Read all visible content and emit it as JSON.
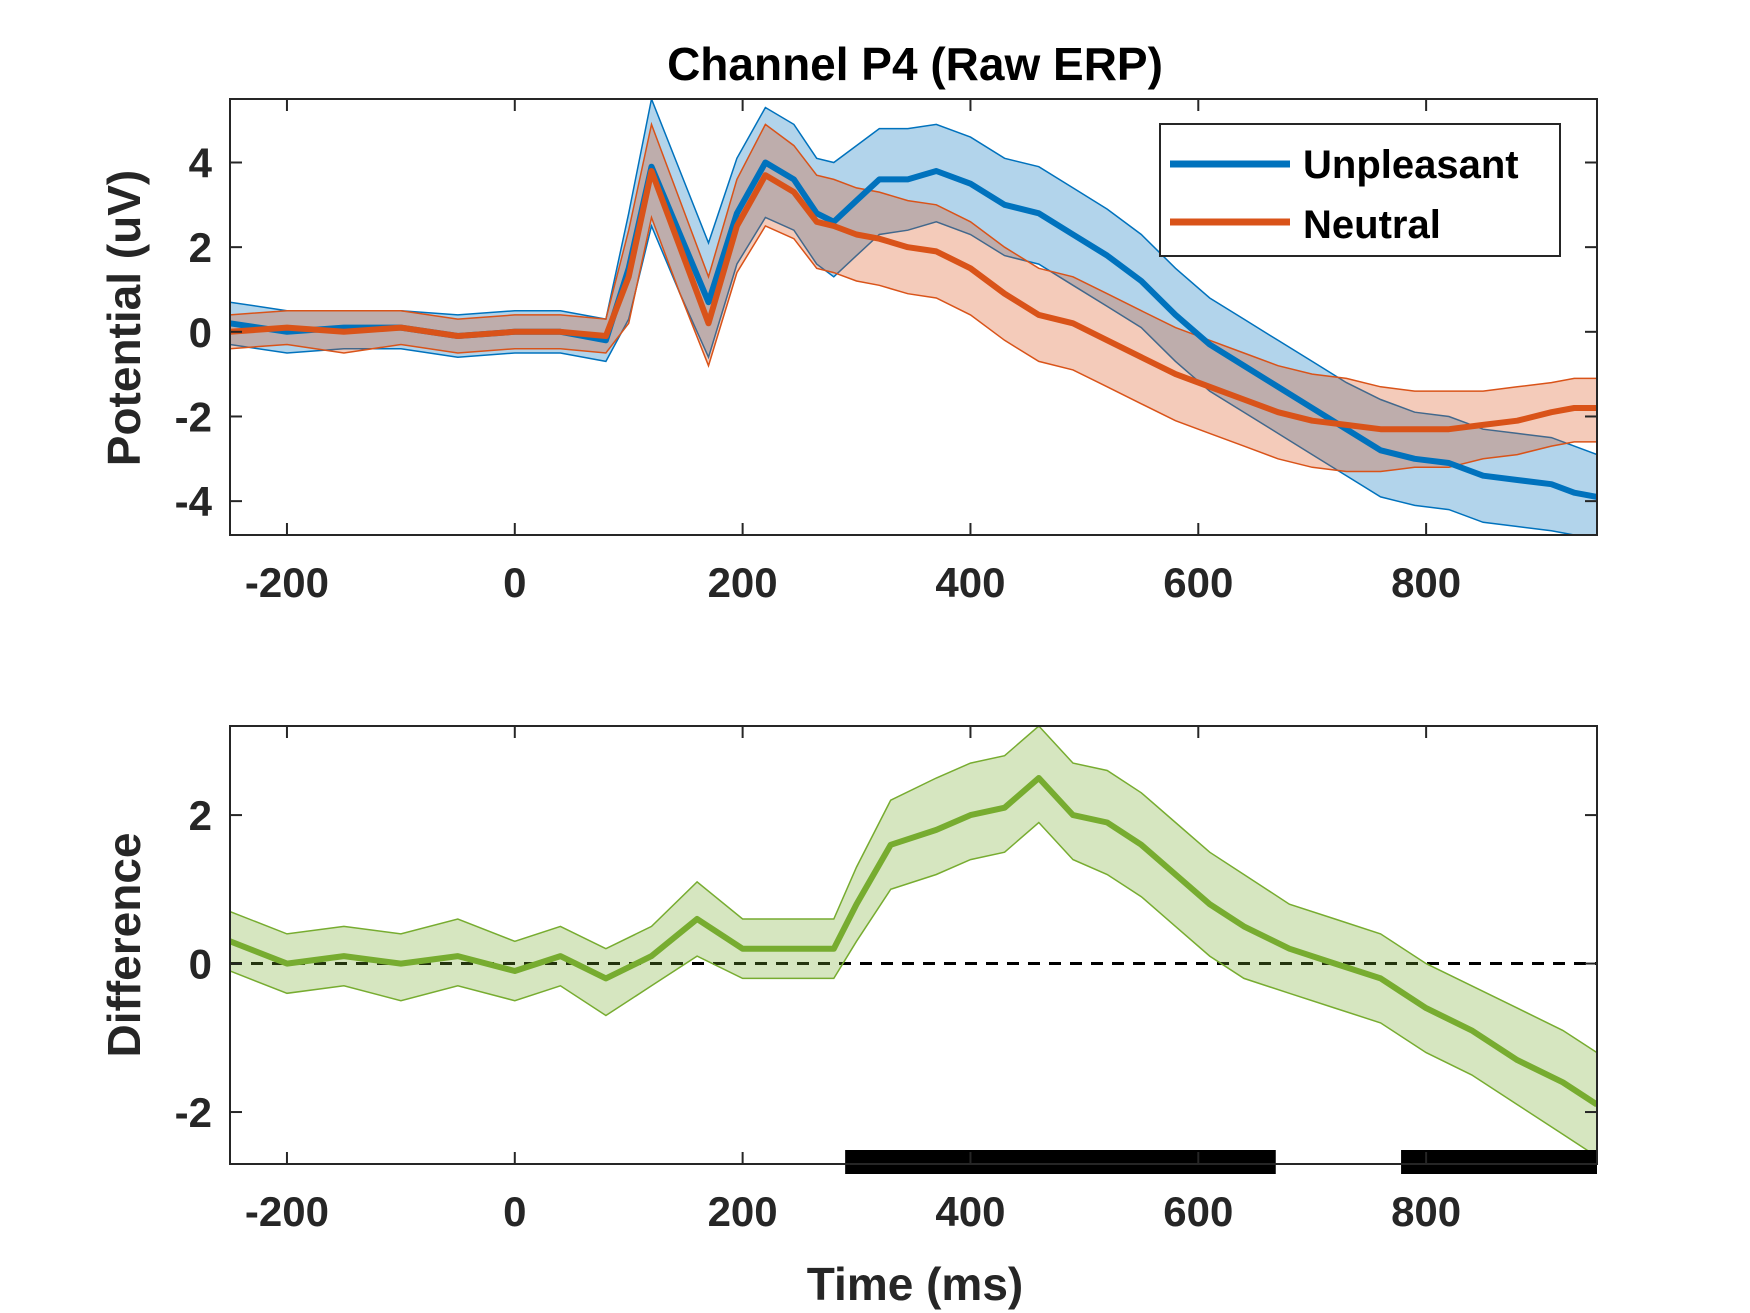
{
  "chart_data": [
    {
      "type": "line",
      "title": "Channel P4 (Raw ERP)",
      "xlabel": "",
      "ylabel": "Potential (uV)",
      "xlim": [
        -250,
        950
      ],
      "ylim": [
        -4.8,
        5.5
      ],
      "xticks": [
        -200,
        0,
        200,
        400,
        600,
        800
      ],
      "yticks": [
        -4,
        -2,
        0,
        2,
        4
      ],
      "legend": "top-right",
      "grid": false,
      "series": [
        {
          "name": "Unpleasant",
          "color": "#0072BD",
          "x": [
            -250,
            -200,
            -150,
            -100,
            -50,
            0,
            40,
            80,
            100,
            120,
            145,
            170,
            195,
            220,
            245,
            265,
            280,
            300,
            320,
            345,
            370,
            400,
            430,
            460,
            490,
            520,
            550,
            580,
            610,
            640,
            670,
            700,
            730,
            760,
            790,
            820,
            850,
            880,
            910,
            930,
            950
          ],
          "y": [
            0.2,
            0.0,
            0.1,
            0.1,
            -0.1,
            0.0,
            0.0,
            -0.2,
            1.5,
            3.9,
            2.3,
            0.7,
            2.8,
            4.0,
            3.6,
            2.8,
            2.6,
            3.1,
            3.6,
            3.6,
            3.8,
            3.5,
            3.0,
            2.8,
            2.3,
            1.8,
            1.2,
            0.4,
            -0.3,
            -0.8,
            -1.3,
            -1.8,
            -2.3,
            -2.8,
            -3.0,
            -3.1,
            -3.4,
            -3.5,
            -3.6,
            -3.8,
            -3.9
          ],
          "upper": [
            0.7,
            0.5,
            0.5,
            0.5,
            0.4,
            0.5,
            0.5,
            0.3,
            2.8,
            5.5,
            3.8,
            2.1,
            4.1,
            5.3,
            4.9,
            4.1,
            4.0,
            4.4,
            4.8,
            4.8,
            4.9,
            4.6,
            4.1,
            3.9,
            3.4,
            2.9,
            2.3,
            1.5,
            0.8,
            0.3,
            -0.2,
            -0.7,
            -1.2,
            -1.6,
            -1.9,
            -2.0,
            -2.3,
            -2.4,
            -2.5,
            -2.7,
            -2.9
          ],
          "lower": [
            -0.3,
            -0.5,
            -0.4,
            -0.4,
            -0.6,
            -0.5,
            -0.5,
            -0.7,
            0.3,
            2.5,
            0.9,
            -0.6,
            1.6,
            2.7,
            2.4,
            1.6,
            1.3,
            1.8,
            2.3,
            2.4,
            2.6,
            2.3,
            1.8,
            1.6,
            1.1,
            0.6,
            0.1,
            -0.7,
            -1.4,
            -1.9,
            -2.4,
            -2.9,
            -3.4,
            -3.9,
            -4.1,
            -4.2,
            -4.5,
            -4.6,
            -4.7,
            -4.8,
            -4.8
          ]
        },
        {
          "name": "Neutral",
          "color": "#D95319",
          "x": [
            -250,
            -200,
            -150,
            -100,
            -50,
            0,
            40,
            80,
            100,
            120,
            145,
            170,
            195,
            220,
            245,
            265,
            280,
            300,
            320,
            345,
            370,
            400,
            430,
            460,
            490,
            520,
            550,
            580,
            610,
            640,
            670,
            700,
            730,
            760,
            790,
            820,
            850,
            880,
            910,
            930,
            950
          ],
          "y": [
            0.0,
            0.1,
            0.0,
            0.1,
            -0.1,
            0.0,
            0.0,
            -0.1,
            1.3,
            3.8,
            2.0,
            0.2,
            2.5,
            3.7,
            3.3,
            2.6,
            2.5,
            2.3,
            2.2,
            2.0,
            1.9,
            1.5,
            0.9,
            0.4,
            0.2,
            -0.2,
            -0.6,
            -1.0,
            -1.3,
            -1.6,
            -1.9,
            -2.1,
            -2.2,
            -2.3,
            -2.3,
            -2.3,
            -2.2,
            -2.1,
            -1.9,
            -1.8,
            -1.8
          ],
          "upper": [
            0.4,
            0.5,
            0.5,
            0.5,
            0.3,
            0.4,
            0.4,
            0.3,
            2.4,
            4.9,
            3.1,
            1.3,
            3.6,
            4.9,
            4.4,
            3.7,
            3.6,
            3.4,
            3.3,
            3.1,
            3.0,
            2.6,
            2.0,
            1.5,
            1.3,
            0.9,
            0.5,
            0.1,
            -0.2,
            -0.5,
            -0.8,
            -1.0,
            -1.1,
            -1.3,
            -1.4,
            -1.4,
            -1.4,
            -1.3,
            -1.2,
            -1.1,
            -1.1
          ],
          "lower": [
            -0.4,
            -0.3,
            -0.5,
            -0.3,
            -0.5,
            -0.4,
            -0.4,
            -0.5,
            0.2,
            2.7,
            0.9,
            -0.8,
            1.4,
            2.5,
            2.2,
            1.5,
            1.4,
            1.2,
            1.1,
            0.9,
            0.8,
            0.4,
            -0.2,
            -0.7,
            -0.9,
            -1.3,
            -1.7,
            -2.1,
            -2.4,
            -2.7,
            -3.0,
            -3.2,
            -3.3,
            -3.3,
            -3.2,
            -3.2,
            -3.0,
            -2.9,
            -2.7,
            -2.6,
            -2.6
          ]
        }
      ]
    },
    {
      "type": "line",
      "title": "",
      "xlabel": "Time (ms)",
      "ylabel": "Difference",
      "xlim": [
        -250,
        950
      ],
      "ylim": [
        -2.7,
        3.2
      ],
      "xticks": [
        -200,
        0,
        200,
        400,
        600,
        800
      ],
      "yticks": [
        -2,
        0,
        2
      ],
      "grid": false,
      "zero_line": {
        "y": 0,
        "style": "dashed",
        "color": "#000000"
      },
      "series": [
        {
          "name": "",
          "color": "#77AC30",
          "x": [
            -250,
            -200,
            -150,
            -100,
            -50,
            0,
            40,
            80,
            120,
            160,
            200,
            240,
            280,
            300,
            330,
            370,
            400,
            430,
            460,
            490,
            520,
            550,
            580,
            610,
            640,
            680,
            720,
            760,
            800,
            840,
            880,
            920,
            950
          ],
          "y": [
            0.3,
            0.0,
            0.1,
            0.0,
            0.1,
            -0.1,
            0.1,
            -0.2,
            0.1,
            0.6,
            0.2,
            0.2,
            0.2,
            0.8,
            1.6,
            1.8,
            2.0,
            2.1,
            2.5,
            2.0,
            1.9,
            1.6,
            1.2,
            0.8,
            0.5,
            0.2,
            0.0,
            -0.2,
            -0.6,
            -0.9,
            -1.3,
            -1.6,
            -1.9
          ],
          "upper": [
            0.7,
            0.4,
            0.5,
            0.4,
            0.6,
            0.3,
            0.5,
            0.2,
            0.5,
            1.1,
            0.6,
            0.6,
            0.6,
            1.3,
            2.2,
            2.5,
            2.7,
            2.8,
            3.2,
            2.7,
            2.6,
            2.3,
            1.9,
            1.5,
            1.2,
            0.8,
            0.6,
            0.4,
            0.0,
            -0.3,
            -0.6,
            -0.9,
            -1.2
          ],
          "lower": [
            -0.1,
            -0.4,
            -0.3,
            -0.5,
            -0.3,
            -0.5,
            -0.3,
            -0.7,
            -0.3,
            0.1,
            -0.2,
            -0.2,
            -0.2,
            0.3,
            1.0,
            1.2,
            1.4,
            1.5,
            1.9,
            1.4,
            1.2,
            0.9,
            0.5,
            0.1,
            -0.2,
            -0.4,
            -0.6,
            -0.8,
            -1.2,
            -1.5,
            -1.9,
            -2.3,
            -2.6
          ]
        }
      ],
      "significance_bars": [
        [
          290,
          668
        ],
        [
          778,
          950
        ]
      ]
    }
  ]
}
